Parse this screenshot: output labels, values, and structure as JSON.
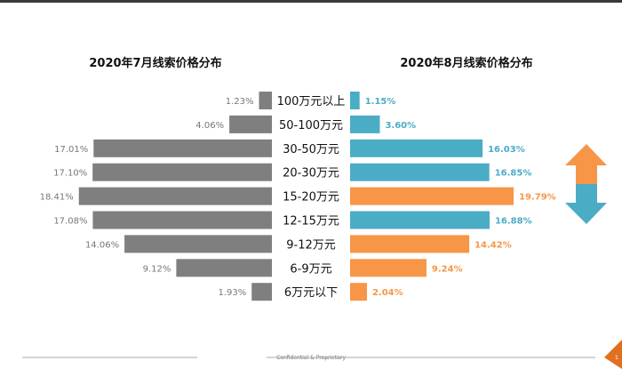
{
  "chart_data": {
    "type": "bar",
    "categories": [
      "100万元以上",
      "50-100万元",
      "30-50万元",
      "20-30万元",
      "15-20万元",
      "12-15万元",
      "9-12万元",
      "6-9万元",
      "6万元以下"
    ],
    "series": [
      {
        "name": "2020年7月线索价格分布",
        "values": [
          1.23,
          4.06,
          17.01,
          17.1,
          18.41,
          17.08,
          14.06,
          9.12,
          1.93
        ],
        "labels": [
          "1.23%",
          "4.06%",
          "17.01%",
          "17.10%",
          "18.41%",
          "17.08%",
          "14.06%",
          "9.12%",
          "1.93%"
        ],
        "color": "#7f7f7f",
        "side": "left"
      },
      {
        "name": "2020年8月线索价格分布",
        "values": [
          1.15,
          3.6,
          16.03,
          16.85,
          19.79,
          16.88,
          14.42,
          9.24,
          2.04
        ],
        "labels": [
          "1.15%",
          "3.60%",
          "16.03%",
          "16.85%",
          "19.79%",
          "16.88%",
          "14.42%",
          "9.24%",
          "2.04%"
        ],
        "trend": [
          "down",
          "down",
          "down",
          "down",
          "up",
          "down",
          "up",
          "up",
          "up"
        ],
        "side": "right"
      }
    ],
    "colors": {
      "left": "#7f7f7f",
      "down": "#4bacc6",
      "up": "#f79646"
    },
    "legend_icon": "up-down-arrow-icon"
  },
  "footer": {
    "text": "Confidential & Proprietary",
    "page": "1"
  }
}
